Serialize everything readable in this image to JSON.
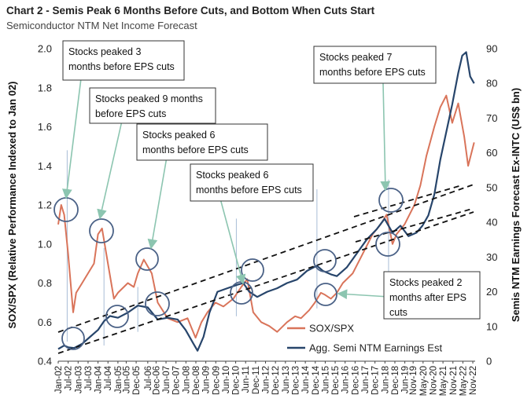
{
  "header": {
    "title": "Chart 2 - Semis Peak 6 Months Before Cuts, and Bottom When Cuts Start",
    "subtitle": "Semiconductor NTM Net Income Forecast"
  },
  "colors": {
    "sox": "#d9745a",
    "earnings": "#27456b",
    "circle": "#4a6186",
    "arrow": "#8cc5b0",
    "trend": "#111111"
  },
  "chart_data": {
    "type": "line",
    "ylabel": "SOX/SPX (Relative Performance Indexed to Jan 02)",
    "y2label": "Semis NTM Earnings Forecast Ex-INTC (US$ bn)",
    "ylim": [
      0.4,
      2.0
    ],
    "y_ticks": [
      "0.4",
      "0.6",
      "0.8",
      "1.0",
      "1.2",
      "1.4",
      "1.6",
      "1.8",
      "2.0"
    ],
    "y2lim": [
      0,
      90
    ],
    "y2_ticks": [
      "0",
      "10",
      "20",
      "30",
      "40",
      "50",
      "60",
      "70",
      "80",
      "90"
    ],
    "x_ticks": [
      "Jan-02",
      "Jul-02",
      "Jan-03",
      "Jul-03",
      "Jan-04",
      "Jul-04",
      "Jan-05",
      "Jun-05",
      "Dec-05",
      "Jul-06",
      "Dec-06",
      "Jun-07",
      "Dec-07",
      "Jun-08",
      "Dec-08",
      "Jun-09",
      "Dec-09",
      "Jun-10",
      "Dec-10",
      "Jun-11",
      "Dec-11",
      "Jun-12",
      "Dec-12",
      "Jun-13",
      "Dec-13",
      "Jun-14",
      "Dec-14",
      "Jun-15",
      "Dec-15",
      "Jun-16",
      "Dec-16",
      "Jun-17",
      "Dec-17",
      "Jun-18",
      "Dec-18",
      "Jun-19",
      "Nov-19",
      "May-20",
      "Nov-20",
      "May-21",
      "Nov-21",
      "May-22",
      "Nov-22"
    ],
    "series": [
      {
        "name": "SOX/SPX",
        "axis": "left",
        "x": [
          2002.0,
          2002.15,
          2002.3,
          2002.5,
          2002.75,
          2002.9,
          2003.2,
          2003.5,
          2003.8,
          2004.0,
          2004.2,
          2004.5,
          2004.8,
          2005.0,
          2005.5,
          2005.8,
          2006.0,
          2006.3,
          2006.7,
          2007.0,
          2007.5,
          2008.0,
          2008.5,
          2008.9,
          2009.2,
          2009.5,
          2009.9,
          2010.3,
          2010.8,
          2011.2,
          2011.5,
          2011.8,
          2012.2,
          2012.6,
          2013.0,
          2013.5,
          2013.9,
          2014.2,
          2014.6,
          2014.9,
          2015.2,
          2015.4,
          2015.7,
          2016.0,
          2016.3,
          2016.8,
          2017.3,
          2017.8,
          2018.2,
          2018.5,
          2018.8,
          2019.0,
          2019.4,
          2019.9,
          2020.2,
          2020.5,
          2020.9,
          2021.2,
          2021.5,
          2021.8,
          2022.1,
          2022.4,
          2022.6,
          2022.9
        ],
        "values": [
          1.1,
          1.2,
          1.15,
          0.95,
          0.65,
          0.75,
          0.8,
          0.85,
          0.9,
          1.05,
          1.08,
          0.9,
          0.72,
          0.75,
          0.8,
          0.78,
          0.85,
          0.92,
          0.85,
          0.7,
          0.62,
          0.6,
          0.62,
          0.52,
          0.6,
          0.65,
          0.7,
          0.68,
          0.72,
          0.78,
          0.82,
          0.65,
          0.6,
          0.58,
          0.55,
          0.6,
          0.63,
          0.62,
          0.66,
          0.7,
          0.75,
          0.74,
          0.72,
          0.75,
          0.8,
          0.85,
          0.95,
          1.05,
          1.1,
          1.15,
          1.0,
          1.05,
          1.1,
          1.2,
          1.3,
          1.45,
          1.6,
          1.7,
          1.76,
          1.62,
          1.72,
          1.55,
          1.4,
          1.52
        ]
      },
      {
        "name": "Agg. Semi NTM Earnings Est",
        "axis": "right",
        "x": [
          2002.0,
          2002.3,
          2002.5,
          2002.8,
          2003.2,
          2003.6,
          2004.0,
          2004.3,
          2004.6,
          2005.0,
          2005.5,
          2006.0,
          2006.5,
          2007.0,
          2007.5,
          2008.0,
          2008.4,
          2008.8,
          2009.0,
          2009.3,
          2009.6,
          2010.0,
          2010.5,
          2011.0,
          2011.3,
          2011.6,
          2012.0,
          2012.5,
          2013.0,
          2013.5,
          2014.0,
          2014.5,
          2015.0,
          2015.3,
          2015.7,
          2016.0,
          2016.5,
          2017.0,
          2017.5,
          2018.0,
          2018.4,
          2018.8,
          2019.2,
          2019.6,
          2020.0,
          2020.3,
          2020.6,
          2020.9,
          2021.2,
          2021.5,
          2021.8,
          2022.1,
          2022.3,
          2022.5,
          2022.7,
          2022.9
        ],
        "values": [
          3.5,
          4.5,
          4.0,
          3.8,
          5.0,
          7.0,
          9.0,
          11.5,
          13.0,
          12.5,
          14.0,
          16.0,
          15.5,
          12.0,
          12.5,
          12.0,
          9.0,
          5.0,
          3.0,
          7.0,
          14.0,
          20.0,
          21.0,
          22.0,
          22.5,
          20.0,
          18.5,
          20.0,
          21.0,
          22.5,
          23.5,
          26.0,
          27.5,
          26.0,
          25.0,
          24.5,
          27.0,
          31.0,
          35.0,
          38.0,
          41.0,
          37.0,
          39.0,
          36.0,
          37.0,
          39.0,
          42.0,
          48.0,
          58.0,
          66.0,
          74.0,
          83.0,
          88.0,
          89.0,
          82.0,
          80.0
        ]
      }
    ],
    "legend": [
      "SOX/SPX",
      "Agg. Semi NTM Earnings Est"
    ],
    "annotations": [
      "Stocks peaked 3 months before EPS cuts",
      "Stocks peaked 9 months before EPS cuts",
      "Stocks peaked 6 months before EPS cuts",
      "Stocks peaked 6 months before EPS cuts",
      "Stocks peaked 7 months before EPS cuts",
      "Stocks peaked 2 months after EPS cuts"
    ],
    "callouts": [
      {
        "lines": [
          "Stocks peaked 3",
          "months before EPS cuts"
        ]
      },
      {
        "lines": [
          "Stocks peaked 9 months",
          "before EPS cuts"
        ]
      },
      {
        "lines": [
          "Stocks peaked 6",
          "months before EPS cuts"
        ]
      },
      {
        "lines": [
          "Stocks peaked 6",
          "months before EPS cuts"
        ]
      },
      {
        "lines": [
          "Stocks peaked 7",
          "months before EPS cuts"
        ]
      },
      {
        "lines": [
          "Stocks peaked 2",
          "months after EPS",
          "cuts"
        ]
      }
    ]
  }
}
